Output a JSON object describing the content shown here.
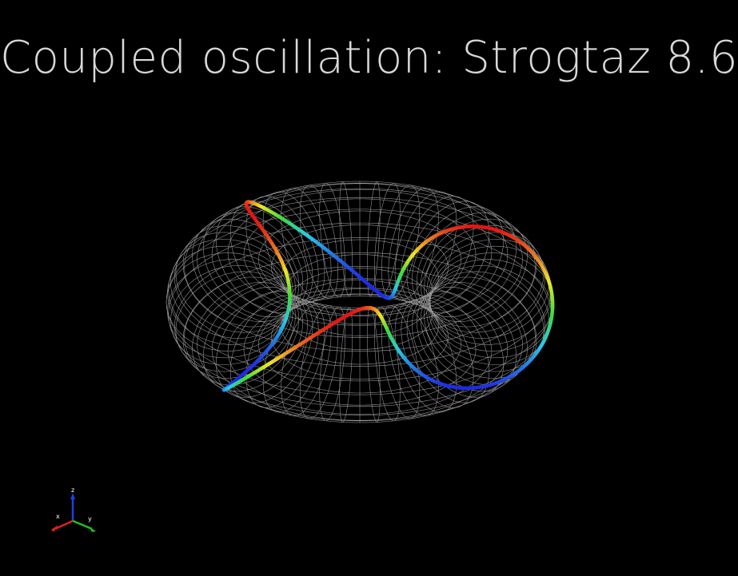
{
  "title": "Coupled oscillation: Strogtaz 8.6",
  "axes": {
    "x": "x",
    "y": "y",
    "z": "z"
  },
  "colors": {
    "background": "#000000",
    "mesh": "#cfcfcf",
    "axis_x": "#e02020",
    "axis_y": "#20c020",
    "axis_z": "#2040e0"
  }
}
